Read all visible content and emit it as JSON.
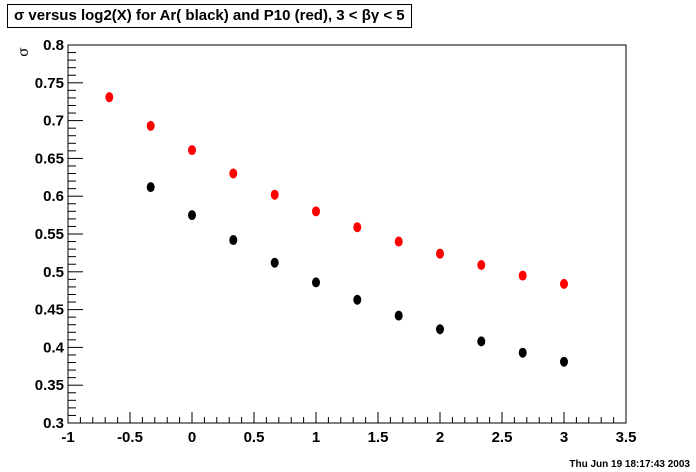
{
  "page": {
    "title": "σ versus log2(X) for Ar( black) and P10 (red), 3 < βγ < 5",
    "timestamp": "Thu Jun 19 18:17:43 2003"
  },
  "chart_data": {
    "type": "scatter",
    "title": "σ versus log2(X) for Ar( black) and P10 (red), 3 < βγ < 5",
    "xlabel": "",
    "ylabel": "σ",
    "xlim": [
      -1,
      3.5
    ],
    "ylim": [
      0.3,
      0.8
    ],
    "xticks": [
      "-1",
      "-0.5",
      "0",
      "0.5",
      "1",
      "1.5",
      "2",
      "2.5",
      "3",
      "3.5"
    ],
    "yticks": [
      "0.3",
      "0.35",
      "0.4",
      "0.45",
      "0.5",
      "0.55",
      "0.6",
      "0.65",
      "0.7",
      "0.75",
      "0.8"
    ],
    "grid": false,
    "legend": "none",
    "series": [
      {
        "color": "#000000",
        "x": [
          -0.333,
          0.0,
          0.333,
          0.667,
          1.0,
          1.333,
          1.667,
          2.0,
          2.333,
          2.667,
          3.0
        ],
        "y": [
          0.612,
          0.575,
          0.542,
          0.512,
          0.486,
          0.463,
          0.442,
          0.424,
          0.408,
          0.393,
          0.381
        ]
      },
      {
        "color": "#ff0000",
        "x": [
          -0.667,
          -0.333,
          0.0,
          0.333,
          0.667,
          1.0,
          1.333,
          1.667,
          2.0,
          2.333,
          2.667,
          3.0
        ],
        "y": [
          0.731,
          0.693,
          0.661,
          0.63,
          0.602,
          0.58,
          0.559,
          0.54,
          0.524,
          0.509,
          0.495,
          0.484
        ]
      }
    ]
  }
}
